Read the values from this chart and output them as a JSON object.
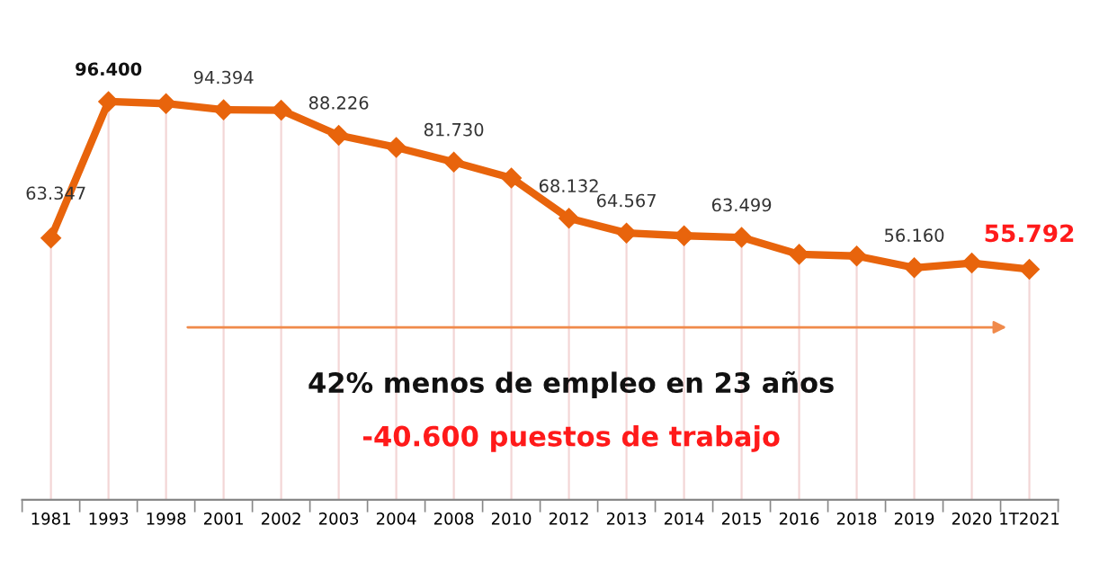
{
  "chart_data": {
    "type": "line",
    "categories": [
      "1981",
      "1993",
      "1998",
      "2001",
      "2002",
      "2003",
      "2004",
      "2008",
      "2010",
      "2012",
      "2013",
      "2014",
      "2015",
      "2016",
      "2018",
      "2019",
      "2020",
      "1T2021"
    ],
    "series": [
      {
        "color": "#e8640c",
        "values": [
          63.347,
          96.4,
          95.9,
          94.394,
          94.3,
          88.226,
          85.3,
          81.73,
          77.9,
          68.132,
          64.567,
          63.9,
          63.499,
          59.4,
          59.0,
          56.16,
          57.3,
          55.792
        ],
        "value_labels": [
          "63.347",
          "96.400",
          null,
          "94.394",
          null,
          "88.226",
          null,
          "81.730",
          null,
          "68.132",
          "64.567",
          null,
          "63.499",
          null,
          null,
          "56.160",
          null,
          "55.792"
        ]
      }
    ],
    "marker": "diamond",
    "line_style": "solid",
    "grid": "x",
    "legend": false,
    "tick_labels": "x",
    "annotations": [
      "42% menos de empleo en 23 años",
      "-40.600 puestos de trabajo"
    ]
  }
}
